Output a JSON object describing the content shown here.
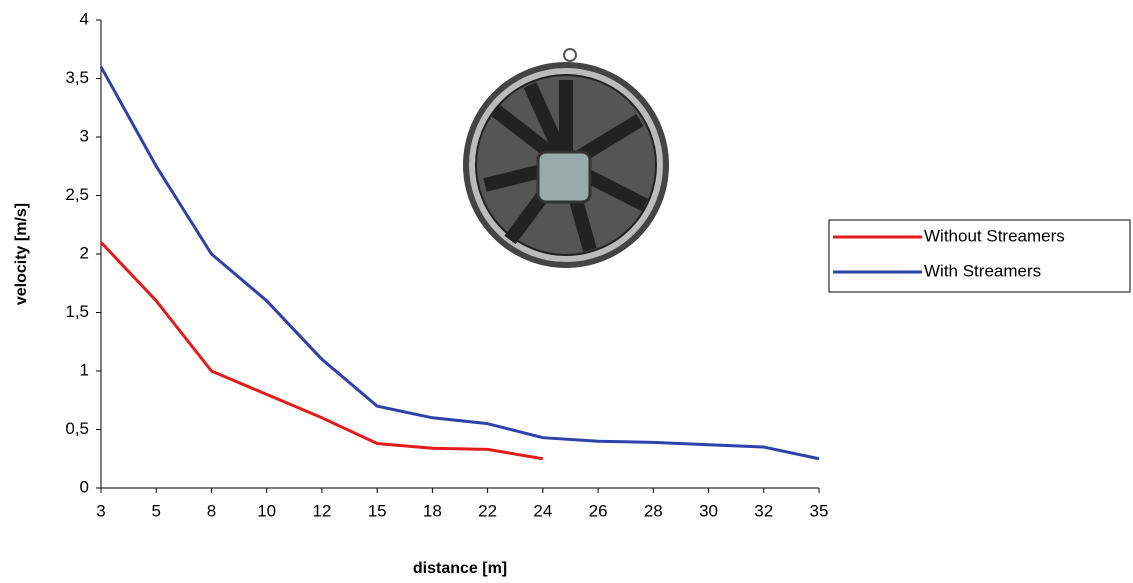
{
  "chart_data": {
    "type": "line",
    "x_label": "distance [m]",
    "y_label": "velocity [m/s]",
    "categories": [
      "3",
      "5",
      "8",
      "10",
      "12",
      "15",
      "18",
      "22",
      "24",
      "26",
      "28",
      "30",
      "32",
      "35"
    ],
    "series": [
      {
        "name": "Without Streamers",
        "color": "#e31b1b",
        "values": [
          2.1,
          1.6,
          1.0,
          0.8,
          0.6,
          0.38,
          0.34,
          0.33,
          0.25,
          null,
          null,
          null,
          null,
          null
        ]
      },
      {
        "name": "With Streamers",
        "color": "#2d41a8",
        "values": [
          3.6,
          2.75,
          2.0,
          1.6,
          1.1,
          0.7,
          0.6,
          0.55,
          0.43,
          0.4,
          0.39,
          0.37,
          0.35,
          0.25
        ]
      }
    ],
    "ylim": [
      0,
      4
    ],
    "yticks": [
      0,
      {
        "value": 0.5,
        "label": "0,5"
      },
      1,
      {
        "value": 1.5,
        "label": "1,5"
      },
      2,
      {
        "value": 2.5,
        "label": "2,5"
      },
      3,
      {
        "value": 3.5,
        "label": "3,5"
      },
      4
    ],
    "grid": false,
    "legend": "right"
  }
}
